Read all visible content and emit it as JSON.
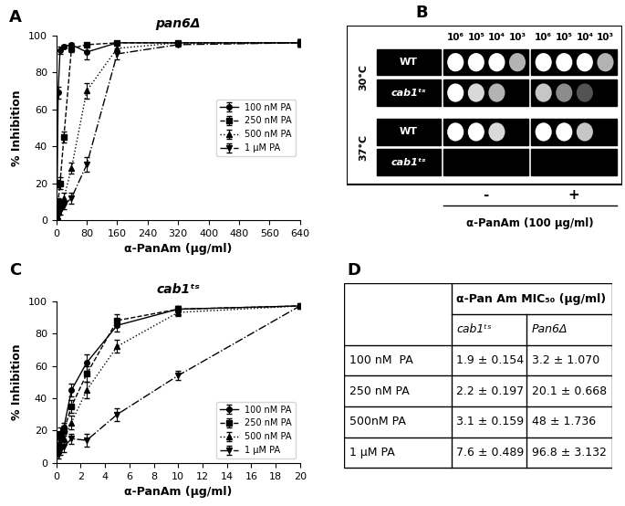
{
  "chart_data": [
    {
      "panel": "A",
      "type": "line",
      "title": "pan6Δ",
      "x_label": "α-PanAm (μg/ml)",
      "y_label": "% Inhibition",
      "xlim": [
        0,
        640
      ],
      "xticks": [
        0,
        80,
        160,
        240,
        320,
        400,
        480,
        560,
        640
      ],
      "ylim": [
        0,
        100
      ],
      "yticks": [
        0,
        20,
        40,
        60,
        80,
        100
      ],
      "legend": "center right",
      "x": [
        2.5,
        5,
        10,
        20,
        40,
        80,
        160,
        320,
        640
      ],
      "series": [
        {
          "name": "100 nM PA",
          "color": "#000000",
          "marker": "circle",
          "line_style": "solid",
          "values": [
            20,
            69,
            92,
            94,
            95,
            91,
            96,
            96,
            96
          ],
          "errors": [
            2,
            3,
            2,
            1,
            1,
            4,
            1,
            1,
            2
          ]
        },
        {
          "name": "250 nM PA",
          "color": "#000000",
          "marker": "square",
          "line_style": "dashed",
          "values": [
            5,
            10,
            20,
            45,
            93,
            95,
            96,
            96,
            96
          ],
          "errors": [
            2,
            2,
            3,
            3,
            2,
            1,
            1,
            1,
            2
          ]
        },
        {
          "name": "500 nM PA",
          "color": "#000000",
          "marker": "triangle_up",
          "line_style": "dotted",
          "values": [
            2,
            5,
            8,
            12,
            28,
            70,
            93,
            96,
            96
          ],
          "errors": [
            1,
            2,
            2,
            3,
            3,
            4,
            2,
            1,
            2
          ]
        },
        {
          "name": "1 μM PA",
          "color": "#000000",
          "marker": "triangle_down",
          "line_style": "dashdot",
          "values": [
            2,
            4,
            5,
            8,
            12,
            30,
            90,
            95,
            96
          ],
          "errors": [
            1,
            1,
            2,
            2,
            3,
            4,
            3,
            1,
            2
          ]
        }
      ]
    },
    {
      "panel": "C",
      "type": "line",
      "title": "cab1ᵗˢ",
      "x_label": "α-PanAm (μg/ml)",
      "y_label": "% Inhibition",
      "xlim": [
        0,
        20
      ],
      "xticks": [
        0,
        2,
        4,
        6,
        8,
        10,
        12,
        14,
        16,
        18,
        20
      ],
      "ylim": [
        0,
        100
      ],
      "yticks": [
        0,
        20,
        40,
        60,
        80,
        100
      ],
      "legend": "lower right",
      "x": [
        0.156,
        0.3125,
        0.625,
        1.25,
        2.5,
        5,
        10,
        20
      ],
      "series": [
        {
          "name": "100 nM PA",
          "color": "#000000",
          "marker": "circle",
          "line_style": "solid",
          "values": [
            10,
            15,
            22,
            45,
            62,
            85,
            95,
            97
          ],
          "errors": [
            3,
            4,
            3,
            4,
            5,
            4,
            2,
            1
          ]
        },
        {
          "name": "250 nM PA",
          "color": "#000000",
          "marker": "square",
          "line_style": "dashed",
          "values": [
            10,
            18,
            20,
            35,
            55,
            88,
            95,
            97
          ],
          "errors": [
            3,
            4,
            3,
            4,
            5,
            4,
            2,
            1
          ]
        },
        {
          "name": "500 nM PA",
          "color": "#000000",
          "marker": "triangle_up",
          "line_style": "dotted",
          "values": [
            8,
            12,
            15,
            25,
            45,
            72,
            93,
            97
          ],
          "errors": [
            3,
            3,
            3,
            4,
            5,
            4,
            2,
            1
          ]
        },
        {
          "name": "1 μM PA",
          "color": "#000000",
          "marker": "triangle_down",
          "line_style": "dashdot",
          "values": [
            5,
            8,
            10,
            15,
            14,
            30,
            54,
            97
          ],
          "errors": [
            2,
            3,
            3,
            3,
            4,
            4,
            3,
            1
          ]
        }
      ]
    }
  ],
  "panel_b": {
    "panel": "B",
    "dilutions": [
      "10⁶",
      "10⁵",
      "10⁴",
      "10³"
    ],
    "treatments": [
      "-",
      "+"
    ],
    "treatment_label": "α-PanAm (100 μg/ml)",
    "temperatures": [
      {
        "label": "30°C",
        "strains": [
          {
            "name": "WT",
            "growth": [
              [
                1,
                1,
                1,
                0.6
              ],
              [
                1,
                1,
                1,
                0.6
              ]
            ]
          },
          {
            "name": "cab1ᵗˢ",
            "growth": [
              [
                1,
                0.8,
                0.6,
                0
              ],
              [
                0.7,
                0.4,
                0.1,
                0
              ]
            ]
          }
        ]
      },
      {
        "label": "37°C",
        "strains": [
          {
            "name": "WT",
            "growth": [
              [
                1,
                1,
                0.8,
                0
              ],
              [
                1,
                1,
                0.7,
                0
              ]
            ]
          },
          {
            "name": "cab1ᵗˢ",
            "growth": [
              [
                0,
                0,
                0,
                0
              ],
              [
                0,
                0,
                0,
                0
              ]
            ]
          }
        ]
      }
    ]
  },
  "panel_d": {
    "panel": "D",
    "header": "α-Pan Am MIC₅₀ (μg/ml)",
    "columns": [
      "cab1ᵗˢ",
      "Pan6Δ"
    ],
    "rows": [
      [
        "100 nM  PA",
        "1.9 ± 0.154",
        "3.2 ± 1.070"
      ],
      [
        "250 nM PA",
        "2.2 ± 0.197",
        "20.1 ± 0.668"
      ],
      [
        "500nM PA",
        "3.1 ± 0.159",
        "48 ± 1.736"
      ],
      [
        "1 μM PA",
        "7.6 ± 0.489",
        "96.8 ± 3.132"
      ]
    ]
  }
}
